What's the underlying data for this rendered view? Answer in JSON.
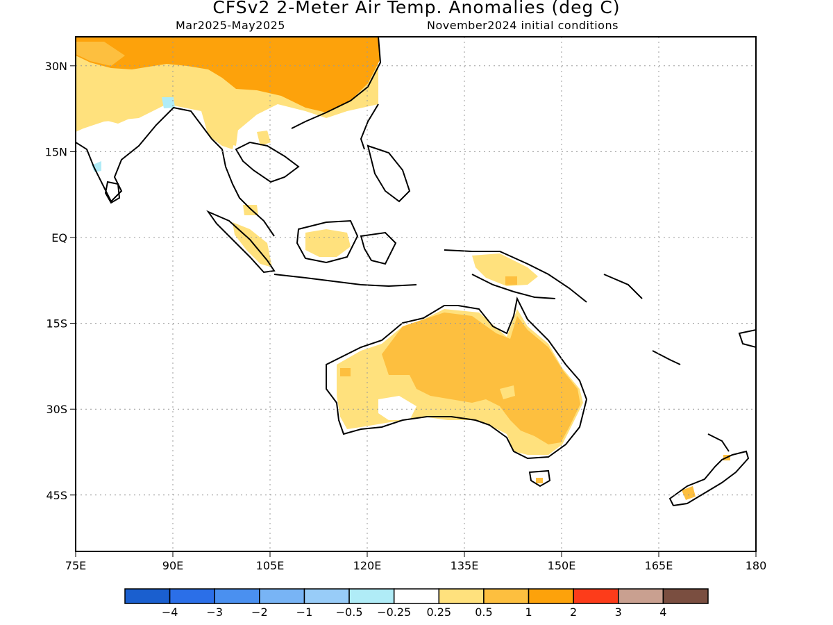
{
  "title": "CFSv2 2-Meter Air Temp. Anomalies (deg C)",
  "subtitle_left": "Mar2025-May2025",
  "subtitle_right": "November2024 initial conditions",
  "map": {
    "lon_range": [
      75,
      180
    ],
    "lat_range": [
      -57,
      35
    ],
    "lat_ticks": [
      {
        "value": 30,
        "label": "30N"
      },
      {
        "value": 15,
        "label": "15N"
      },
      {
        "value": 0,
        "label": "EQ"
      },
      {
        "value": -15,
        "label": "15S"
      },
      {
        "value": -30,
        "label": "30S"
      },
      {
        "value": -45,
        "label": "45S"
      }
    ],
    "lon_ticks": [
      {
        "value": 75,
        "label": "75E"
      },
      {
        "value": 90,
        "label": "90E"
      },
      {
        "value": 105,
        "label": "105E"
      },
      {
        "value": 120,
        "label": "120E"
      },
      {
        "value": 135,
        "label": "135E"
      },
      {
        "value": 150,
        "label": "150E"
      },
      {
        "value": 165,
        "label": "165E"
      },
      {
        "value": 180,
        "label": "180"
      }
    ],
    "grid": "dotted"
  },
  "colorbar": {
    "colors": [
      "#1a5fcf",
      "#2b6fe8",
      "#4a90f0",
      "#78b4f5",
      "#98ccf8",
      "#b0ecf7",
      "#ffffff",
      "#ffe17d",
      "#fdbf3f",
      "#fda20b",
      "#fd3c1a",
      "#c9a090",
      "#7a4e40"
    ],
    "labels": [
      "-4",
      "-3",
      "-2",
      "-1",
      "-0.5",
      "-0.25",
      "0.25",
      "0.5",
      "1",
      "2",
      "3",
      "4"
    ]
  }
}
